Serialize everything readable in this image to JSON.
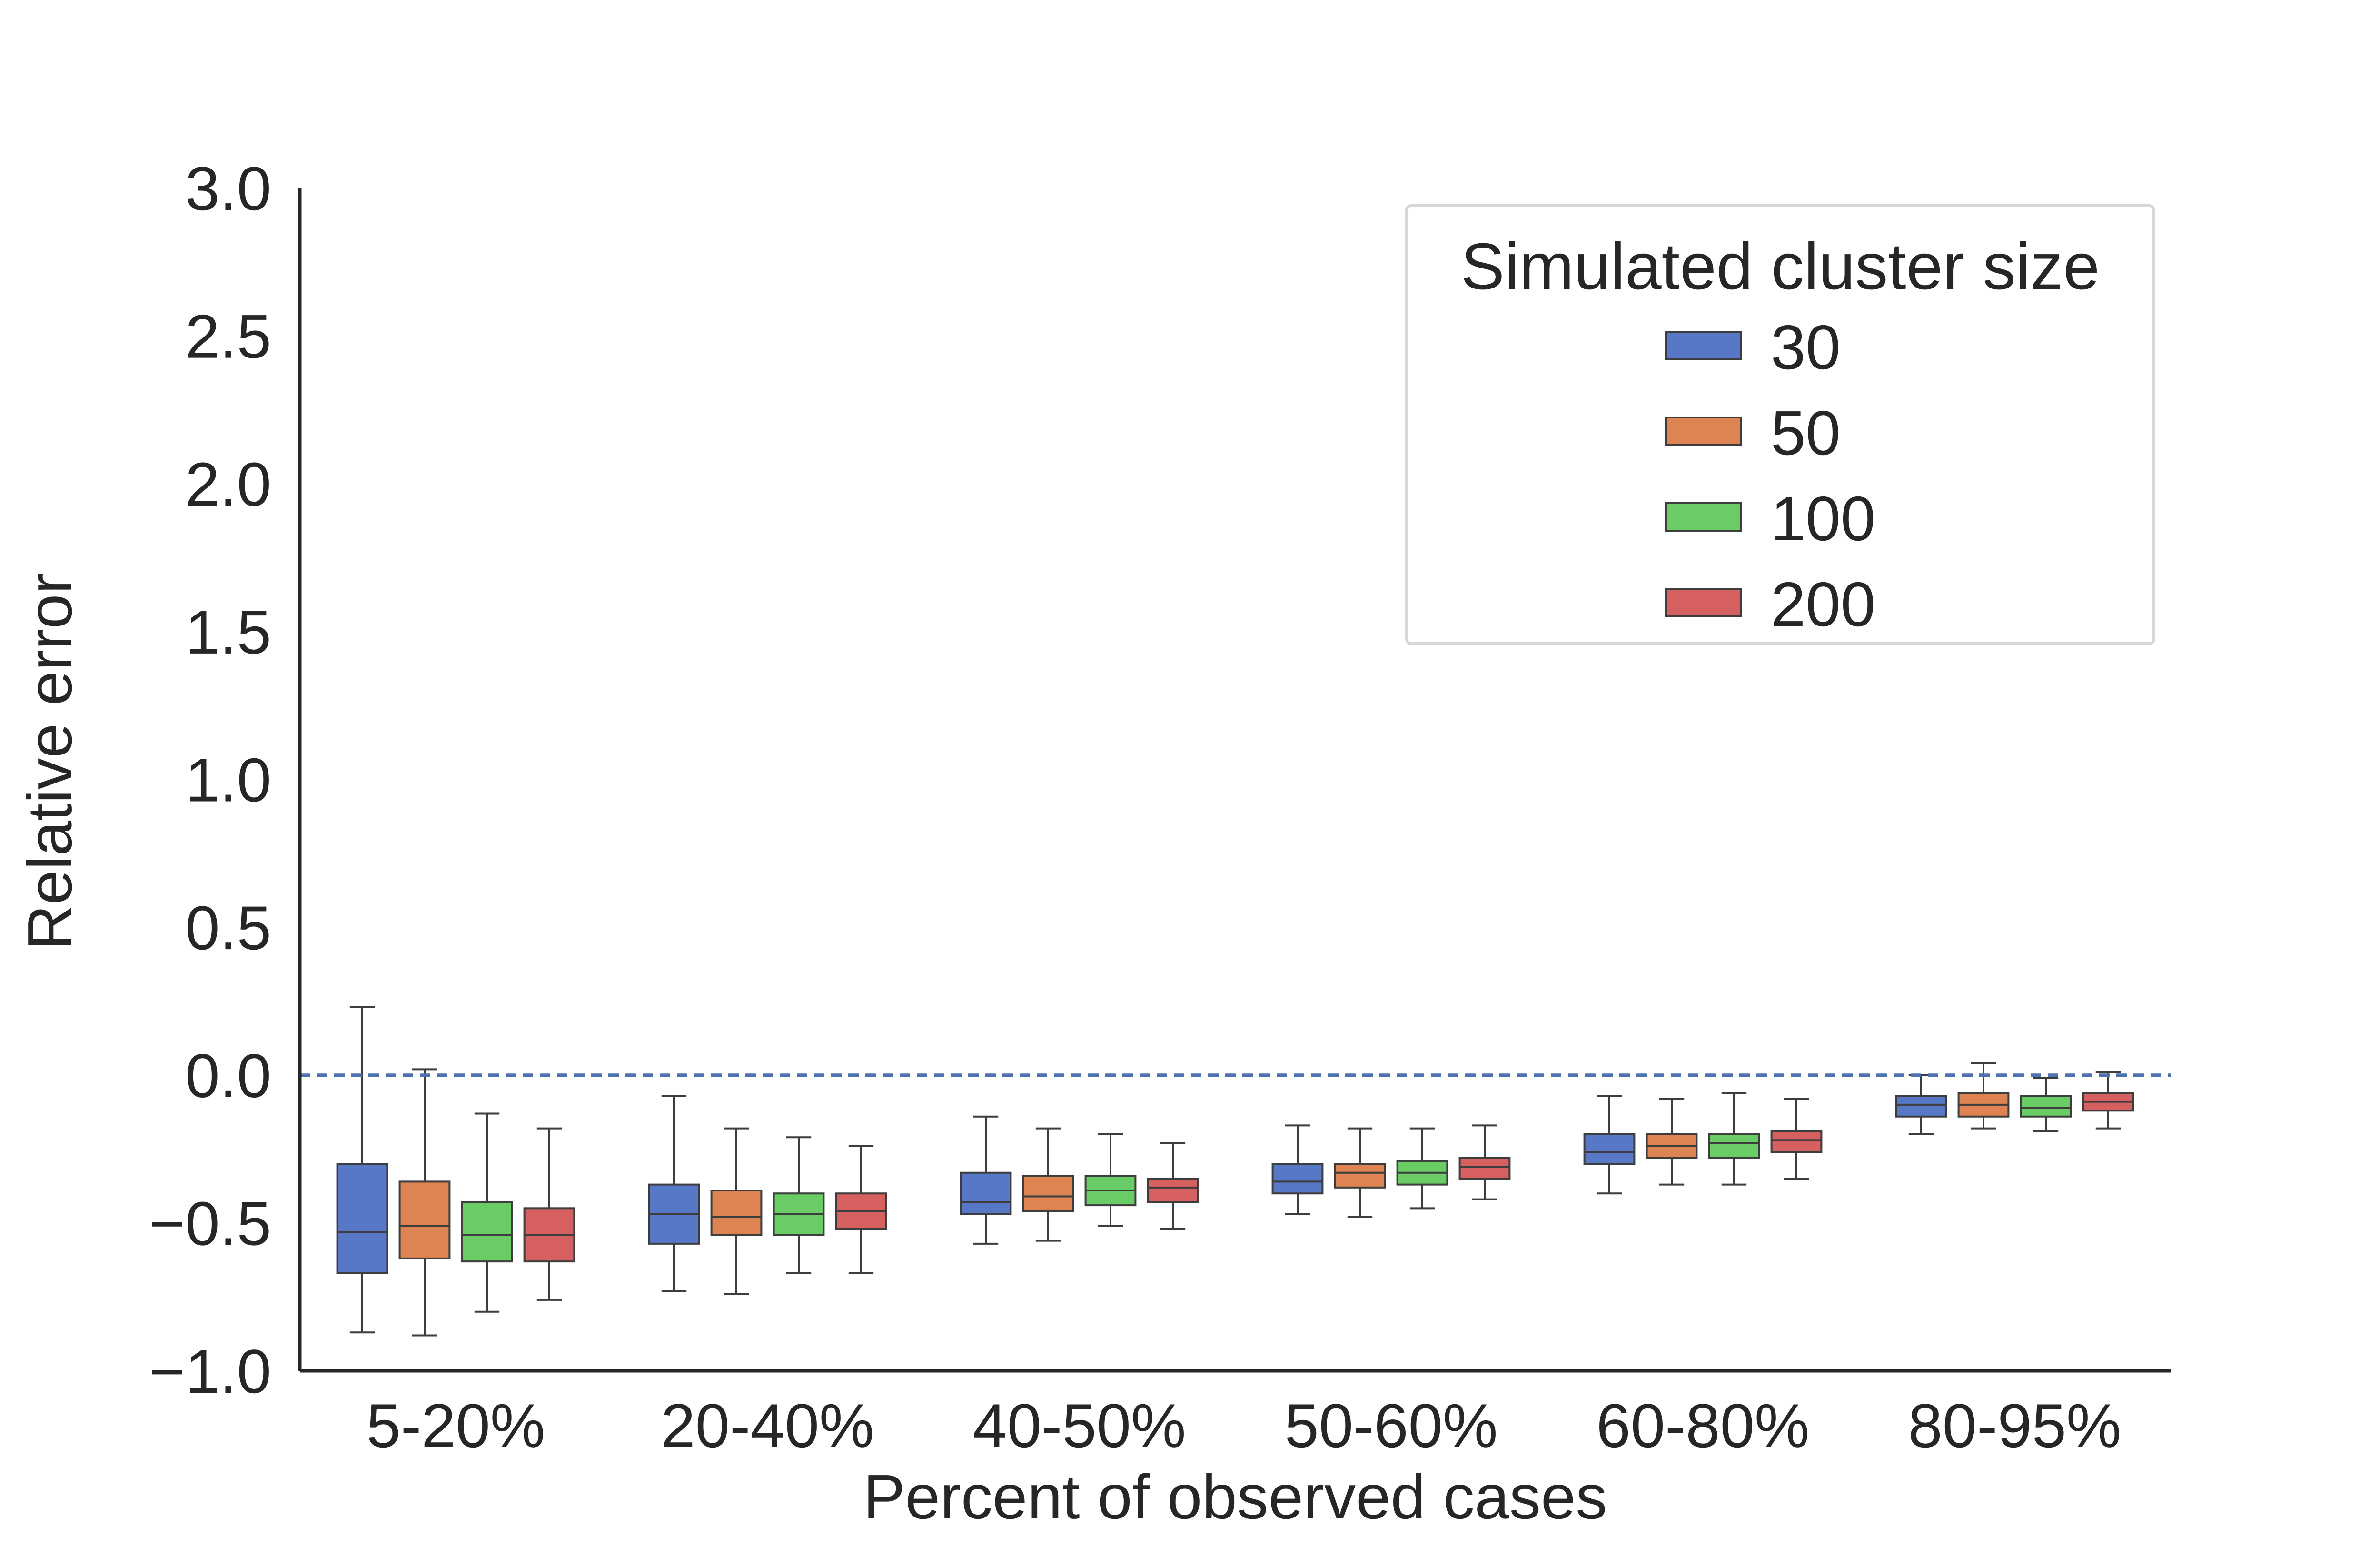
{
  "chart_data": {
    "type": "box",
    "xlabel": "Percent of observed cases",
    "ylabel": "Relative error",
    "ylim": [
      -1.0,
      3.0
    ],
    "yticks": [
      "3.0",
      "2.5",
      "2.0",
      "1.5",
      "1.0",
      "0.5",
      "0.0",
      "−0.5",
      "−1.0"
    ],
    "ytick_values": [
      3.0,
      2.5,
      2.0,
      1.5,
      1.0,
      0.5,
      0.0,
      -0.5,
      -1.0
    ],
    "reference_line": 0.0,
    "grid": false,
    "legend": {
      "title": "Simulated cluster size",
      "placement": "top-right"
    },
    "categories": [
      "5-20%",
      "20-40%",
      "40-50%",
      "50-60%",
      "60-80%",
      "80-95%"
    ],
    "series": [
      {
        "name": "30",
        "color": "#5778c7",
        "boxes": [
          {
            "whislo": -0.87,
            "q1": -0.67,
            "med": -0.53,
            "q3": -0.3,
            "whishi": 0.23
          },
          {
            "whislo": -0.73,
            "q1": -0.57,
            "med": -0.47,
            "q3": -0.37,
            "whishi": -0.07
          },
          {
            "whislo": -0.57,
            "q1": -0.47,
            "med": -0.43,
            "q3": -0.33,
            "whishi": -0.14
          },
          {
            "whislo": -0.47,
            "q1": -0.4,
            "med": -0.36,
            "q3": -0.3,
            "whishi": -0.17
          },
          {
            "whislo": -0.4,
            "q1": -0.3,
            "med": -0.26,
            "q3": -0.2,
            "whishi": -0.07
          },
          {
            "whislo": -0.2,
            "q1": -0.14,
            "med": -0.1,
            "q3": -0.07,
            "whishi": 0.0
          }
        ]
      },
      {
        "name": "50",
        "color": "#dd8452",
        "boxes": [
          {
            "whislo": -0.88,
            "q1": -0.62,
            "med": -0.51,
            "q3": -0.36,
            "whishi": 0.02
          },
          {
            "whislo": -0.74,
            "q1": -0.54,
            "med": -0.48,
            "q3": -0.39,
            "whishi": -0.18
          },
          {
            "whislo": -0.56,
            "q1": -0.46,
            "med": -0.41,
            "q3": -0.34,
            "whishi": -0.18
          },
          {
            "whislo": -0.48,
            "q1": -0.38,
            "med": -0.33,
            "q3": -0.3,
            "whishi": -0.18
          },
          {
            "whislo": -0.37,
            "q1": -0.28,
            "med": -0.24,
            "q3": -0.2,
            "whishi": -0.08
          },
          {
            "whislo": -0.18,
            "q1": -0.14,
            "med": -0.1,
            "q3": -0.06,
            "whishi": 0.04
          }
        ]
      },
      {
        "name": "100",
        "color": "#6acc65",
        "boxes": [
          {
            "whislo": -0.8,
            "q1": -0.63,
            "med": -0.54,
            "q3": -0.43,
            "whishi": -0.13
          },
          {
            "whislo": -0.67,
            "q1": -0.54,
            "med": -0.47,
            "q3": -0.4,
            "whishi": -0.21
          },
          {
            "whislo": -0.51,
            "q1": -0.44,
            "med": -0.39,
            "q3": -0.34,
            "whishi": -0.2
          },
          {
            "whislo": -0.45,
            "q1": -0.37,
            "med": -0.33,
            "q3": -0.29,
            "whishi": -0.18
          },
          {
            "whislo": -0.37,
            "q1": -0.28,
            "med": -0.23,
            "q3": -0.2,
            "whishi": -0.06
          },
          {
            "whislo": -0.19,
            "q1": -0.14,
            "med": -0.11,
            "q3": -0.07,
            "whishi": -0.01
          }
        ]
      },
      {
        "name": "200",
        "color": "#d65f5f",
        "boxes": [
          {
            "whislo": -0.76,
            "q1": -0.63,
            "med": -0.54,
            "q3": -0.45,
            "whishi": -0.18
          },
          {
            "whislo": -0.67,
            "q1": -0.52,
            "med": -0.46,
            "q3": -0.4,
            "whishi": -0.24
          },
          {
            "whislo": -0.52,
            "q1": -0.43,
            "med": -0.38,
            "q3": -0.35,
            "whishi": -0.23
          },
          {
            "whislo": -0.42,
            "q1": -0.35,
            "med": -0.31,
            "q3": -0.28,
            "whishi": -0.17
          },
          {
            "whislo": -0.35,
            "q1": -0.26,
            "med": -0.22,
            "q3": -0.19,
            "whishi": -0.08
          },
          {
            "whislo": -0.18,
            "q1": -0.12,
            "med": -0.09,
            "q3": -0.06,
            "whishi": 0.01
          }
        ]
      }
    ]
  }
}
